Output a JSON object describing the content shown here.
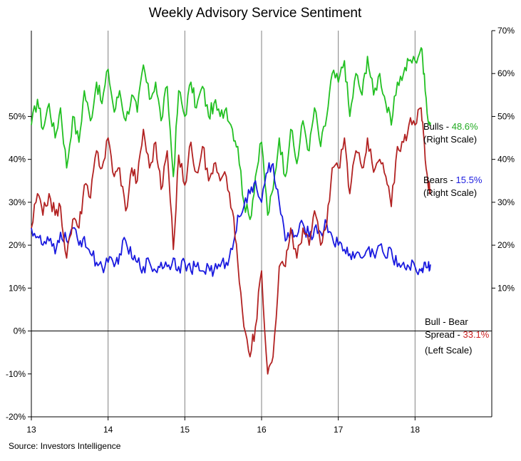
{
  "chart_data": {
    "type": "line",
    "title": "Weekly Advisory Service Sentiment",
    "source": "Source:  Investors Intelligence",
    "x_axis": {
      "range": [
        13,
        19
      ],
      "tick_labels": [
        "13",
        "14",
        "15",
        "16",
        "17",
        "18"
      ],
      "grid": true
    },
    "right_axis": {
      "range": [
        -0.2,
        0.7
      ],
      "tick_labels": [
        {
          "value": 0.7,
          "label": "70%"
        },
        {
          "value": 0.6,
          "label": "60%"
        },
        {
          "value": 0.5,
          "label": "50%"
        },
        {
          "value": 0.4,
          "label": "40%"
        },
        {
          "value": 0.3,
          "label": "30%"
        },
        {
          "value": 0.2,
          "label": "20%"
        },
        {
          "value": 0.1,
          "label": "10%"
        }
      ]
    },
    "left_axis": {
      "range": [
        -0.2,
        0.7
      ],
      "tick_labels": [
        {
          "value": 0.5,
          "label": "50%"
        },
        {
          "value": 0.4,
          "label": "40%"
        },
        {
          "value": 0.3,
          "label": "30%"
        },
        {
          "value": 0.2,
          "label": "20%"
        },
        {
          "value": 0.1,
          "label": "10%"
        },
        {
          "value": 0.0,
          "label": "0%"
        },
        {
          "value": -0.1,
          "label": "-10%"
        },
        {
          "value": -0.2,
          "label": "-20%"
        }
      ]
    },
    "series": [
      {
        "name": "Bulls",
        "axis": "right",
        "color": "#22c022",
        "x": [
          13.0,
          13.08,
          13.15,
          13.23,
          13.31,
          13.38,
          13.46,
          13.54,
          13.62,
          13.69,
          13.77,
          13.85,
          13.92,
          14.0,
          14.08,
          14.15,
          14.23,
          14.31,
          14.38,
          14.46,
          14.54,
          14.62,
          14.69,
          14.77,
          14.85,
          14.92,
          15.0,
          15.08,
          15.15,
          15.23,
          15.31,
          15.38,
          15.46,
          15.54,
          15.62,
          15.69,
          15.77,
          15.85,
          15.92,
          16.0,
          16.08,
          16.15,
          16.23,
          16.31,
          16.38,
          16.46,
          16.54,
          16.62,
          16.69,
          16.77,
          16.85,
          16.92,
          17.0,
          17.08,
          17.15,
          17.23,
          17.31,
          17.38,
          17.46,
          17.54,
          17.62,
          17.69,
          17.77,
          17.85,
          17.92,
          18.0,
          18.08,
          18.12,
          18.17,
          18.2
        ],
        "y": [
          0.48,
          0.54,
          0.47,
          0.53,
          0.45,
          0.52,
          0.38,
          0.5,
          0.44,
          0.56,
          0.49,
          0.58,
          0.53,
          0.61,
          0.51,
          0.56,
          0.49,
          0.55,
          0.51,
          0.62,
          0.54,
          0.58,
          0.49,
          0.57,
          0.36,
          0.56,
          0.5,
          0.58,
          0.52,
          0.57,
          0.5,
          0.53,
          0.5,
          0.52,
          0.47,
          0.43,
          0.3,
          0.26,
          0.36,
          0.44,
          0.27,
          0.33,
          0.45,
          0.36,
          0.47,
          0.39,
          0.49,
          0.42,
          0.52,
          0.43,
          0.5,
          0.6,
          0.58,
          0.63,
          0.5,
          0.6,
          0.55,
          0.64,
          0.55,
          0.6,
          0.53,
          0.48,
          0.58,
          0.6,
          0.63,
          0.63,
          0.66,
          0.6,
          0.49,
          0.486
        ]
      },
      {
        "name": "Bears",
        "axis": "right",
        "color": "#1a1adf",
        "x": [
          13.0,
          13.08,
          13.15,
          13.23,
          13.31,
          13.38,
          13.46,
          13.54,
          13.62,
          13.69,
          13.77,
          13.85,
          13.92,
          14.0,
          14.08,
          14.15,
          14.23,
          14.31,
          14.38,
          14.46,
          14.54,
          14.62,
          14.69,
          14.77,
          14.85,
          14.92,
          15.0,
          15.08,
          15.15,
          15.23,
          15.31,
          15.38,
          15.46,
          15.54,
          15.62,
          15.69,
          15.77,
          15.85,
          15.92,
          16.0,
          16.08,
          16.15,
          16.23,
          16.31,
          16.38,
          16.46,
          16.54,
          16.62,
          16.69,
          16.77,
          16.85,
          16.92,
          17.0,
          17.08,
          17.15,
          17.23,
          17.31,
          17.38,
          17.46,
          17.54,
          17.62,
          17.69,
          17.77,
          17.85,
          17.92,
          18.0,
          18.08,
          18.12,
          18.17,
          18.2
        ],
        "y": [
          0.24,
          0.22,
          0.2,
          0.21,
          0.18,
          0.23,
          0.21,
          0.24,
          0.2,
          0.22,
          0.18,
          0.16,
          0.15,
          0.16,
          0.15,
          0.18,
          0.21,
          0.17,
          0.16,
          0.15,
          0.16,
          0.14,
          0.16,
          0.15,
          0.17,
          0.15,
          0.16,
          0.14,
          0.15,
          0.14,
          0.15,
          0.14,
          0.15,
          0.16,
          0.19,
          0.27,
          0.29,
          0.32,
          0.35,
          0.3,
          0.37,
          0.39,
          0.3,
          0.21,
          0.23,
          0.22,
          0.25,
          0.22,
          0.24,
          0.23,
          0.25,
          0.22,
          0.2,
          0.19,
          0.18,
          0.18,
          0.17,
          0.19,
          0.18,
          0.2,
          0.17,
          0.19,
          0.15,
          0.16,
          0.15,
          0.15,
          0.14,
          0.16,
          0.15,
          0.155
        ]
      },
      {
        "name": "Bull - Bear Spread",
        "axis": "left",
        "color": "#b22222",
        "x": [
          13.0,
          13.08,
          13.15,
          13.23,
          13.31,
          13.38,
          13.46,
          13.54,
          13.62,
          13.69,
          13.77,
          13.85,
          13.92,
          14.0,
          14.08,
          14.15,
          14.23,
          14.31,
          14.38,
          14.46,
          14.54,
          14.62,
          14.69,
          14.77,
          14.85,
          14.92,
          15.0,
          15.08,
          15.15,
          15.23,
          15.31,
          15.38,
          15.46,
          15.54,
          15.62,
          15.69,
          15.77,
          15.85,
          15.92,
          16.0,
          16.08,
          16.15,
          16.23,
          16.31,
          16.38,
          16.46,
          16.54,
          16.62,
          16.69,
          16.77,
          16.85,
          16.92,
          17.0,
          17.08,
          17.15,
          17.23,
          17.31,
          17.38,
          17.46,
          17.54,
          17.62,
          17.69,
          17.77,
          17.85,
          17.92,
          18.0,
          18.08,
          18.12,
          18.17,
          18.2
        ],
        "y": [
          0.24,
          0.32,
          0.27,
          0.32,
          0.27,
          0.29,
          0.17,
          0.26,
          0.24,
          0.34,
          0.31,
          0.42,
          0.38,
          0.45,
          0.36,
          0.38,
          0.28,
          0.38,
          0.35,
          0.47,
          0.38,
          0.44,
          0.33,
          0.42,
          0.19,
          0.41,
          0.34,
          0.44,
          0.37,
          0.43,
          0.35,
          0.39,
          0.35,
          0.36,
          0.28,
          0.16,
          0.01,
          -0.06,
          0.01,
          0.14,
          -0.1,
          -0.06,
          0.15,
          0.15,
          0.24,
          0.17,
          0.24,
          0.2,
          0.28,
          0.2,
          0.25,
          0.38,
          0.38,
          0.45,
          0.32,
          0.42,
          0.38,
          0.45,
          0.37,
          0.4,
          0.36,
          0.29,
          0.43,
          0.44,
          0.48,
          0.48,
          0.52,
          0.44,
          0.34,
          0.331
        ]
      }
    ],
    "legend": [
      {
        "series": "Bulls",
        "line1": "Bulls - ",
        "value": "48.6%",
        "line2": "(Right Scale)",
        "color": "#22aa22"
      },
      {
        "series": "Bears",
        "line1": "Bears - ",
        "value": "15.5%",
        "line2": "(Right Scale)",
        "color": "#1a1adf"
      },
      {
        "series": "Bull - Bear Spread",
        "line1": "Bull - Bear",
        "line2a": "Spread",
        "line2b": " - ",
        "value": "33.1%",
        "line3": "(Left Scale)",
        "color": "#cc2222"
      }
    ]
  }
}
